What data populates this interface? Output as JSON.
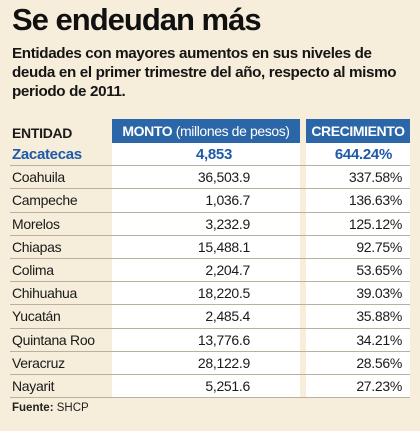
{
  "title": "Se endeudan más",
  "subtitle": "Entidades con mayores aumentos en sus niveles de deuda en el primer trimestre del año, respecto al mismo periodo de 2011.",
  "headers": {
    "entidad": "ENTIDAD",
    "monto": "MONTO",
    "monto_unit": "(millones de pesos)",
    "crecimiento": "CRECIMIENTO"
  },
  "source_label": "Fuente:",
  "source_value": "SHCP",
  "colors": {
    "header_bg": "#2b67a8",
    "highlight_text": "#1e5aa8",
    "background": "#f6edda"
  },
  "chart_data": {
    "type": "table",
    "columns": [
      "ENTIDAD",
      "MONTO (millones de pesos)",
      "CRECIMIENTO"
    ],
    "rows": [
      {
        "entidad": "Zacatecas",
        "monto": "4,853",
        "crecimiento": "644.24%",
        "highlight": true
      },
      {
        "entidad": "Coahuila",
        "monto": "36,503.9",
        "crecimiento": "337.58%"
      },
      {
        "entidad": "Campeche",
        "monto": "1,036.7",
        "crecimiento": "136.63%"
      },
      {
        "entidad": "Morelos",
        "monto": "3,232.9",
        "crecimiento": "125.12%"
      },
      {
        "entidad": "Chiapas",
        "monto": "15,488.1",
        "crecimiento": "92.75%"
      },
      {
        "entidad": "Colima",
        "monto": "2,204.7",
        "crecimiento": "53.65%"
      },
      {
        "entidad": "Chihuahua",
        "monto": "18,220.5",
        "crecimiento": "39.03%"
      },
      {
        "entidad": "Yucatán",
        "monto": "2,485.4",
        "crecimiento": "35.88%"
      },
      {
        "entidad": "Quintana Roo",
        "monto": "13,776.6",
        "crecimiento": "34.21%"
      },
      {
        "entidad": "Veracruz",
        "monto": "28,122.9",
        "crecimiento": "28.56%"
      },
      {
        "entidad": "Nayarit",
        "monto": "5,251.6",
        "crecimiento": "27.23%"
      }
    ]
  }
}
